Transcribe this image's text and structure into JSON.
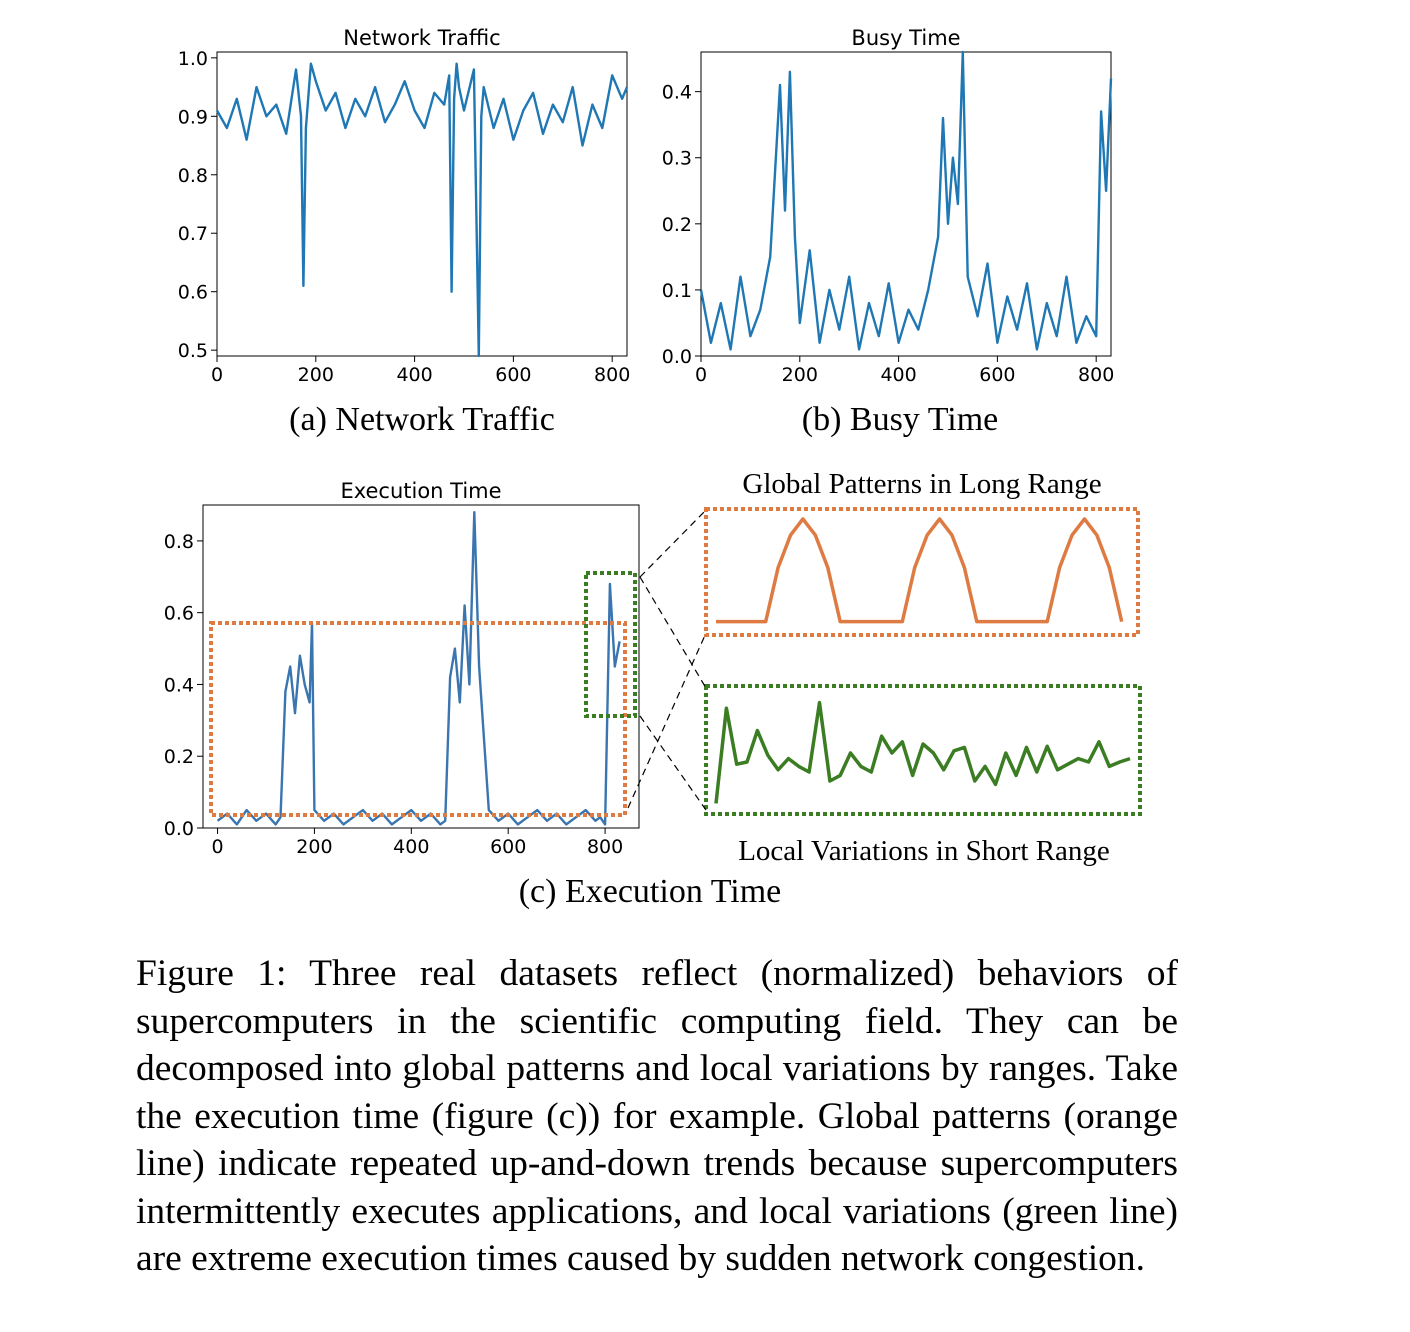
{
  "chart_data": [
    {
      "type": "line",
      "panel": "a",
      "title": "Network Traffic",
      "subcaption": "(a) Network Traffic",
      "color": "#1f77b4",
      "xlim": [
        0,
        830
      ],
      "ylim": [
        0.49,
        1.01
      ],
      "xticks": [
        0,
        200,
        400,
        600,
        800
      ],
      "yticks": [
        0.5,
        0.6,
        0.7,
        0.8,
        0.9,
        1.0
      ],
      "xtick_labels": [
        "0",
        "200",
        "400",
        "600",
        "800"
      ],
      "ytick_labels": [
        "0.5",
        "0.6",
        "0.7",
        "0.8",
        "0.9",
        "1.0"
      ],
      "x": [
        0,
        20,
        40,
        60,
        80,
        100,
        120,
        140,
        160,
        170,
        175,
        180,
        190,
        200,
        220,
        240,
        260,
        280,
        300,
        320,
        340,
        360,
        380,
        400,
        420,
        440,
        460,
        470,
        475,
        480,
        485,
        490,
        500,
        520,
        530,
        535,
        540,
        560,
        580,
        600,
        620,
        640,
        660,
        680,
        700,
        720,
        740,
        760,
        780,
        800,
        820,
        830
      ],
      "values": [
        0.91,
        0.88,
        0.93,
        0.86,
        0.95,
        0.9,
        0.92,
        0.87,
        0.98,
        0.9,
        0.61,
        0.88,
        0.99,
        0.96,
        0.91,
        0.94,
        0.88,
        0.93,
        0.9,
        0.95,
        0.89,
        0.92,
        0.96,
        0.91,
        0.88,
        0.94,
        0.92,
        0.97,
        0.6,
        0.93,
        0.99,
        0.95,
        0.91,
        0.98,
        0.49,
        0.9,
        0.95,
        0.88,
        0.93,
        0.86,
        0.91,
        0.94,
        0.87,
        0.92,
        0.89,
        0.95,
        0.85,
        0.92,
        0.88,
        0.97,
        0.93,
        0.95
      ]
    },
    {
      "type": "line",
      "panel": "b",
      "title": "Busy Time",
      "subcaption": "(b) Busy Time",
      "color": "#1f77b4",
      "xlim": [
        0,
        830
      ],
      "ylim": [
        0,
        0.46
      ],
      "xticks": [
        0,
        200,
        400,
        600,
        800
      ],
      "yticks": [
        0.0,
        0.1,
        0.2,
        0.3,
        0.4
      ],
      "xtick_labels": [
        "0",
        "200",
        "400",
        "600",
        "800"
      ],
      "ytick_labels": [
        "0.0",
        "0.1",
        "0.2",
        "0.3",
        "0.4"
      ],
      "x": [
        0,
        20,
        40,
        60,
        80,
        100,
        120,
        140,
        150,
        160,
        170,
        180,
        190,
        200,
        220,
        240,
        260,
        280,
        300,
        320,
        340,
        360,
        380,
        400,
        420,
        440,
        460,
        480,
        490,
        500,
        510,
        520,
        530,
        540,
        560,
        580,
        600,
        620,
        640,
        660,
        680,
        700,
        720,
        740,
        760,
        780,
        800,
        810,
        820,
        830
      ],
      "values": [
        0.1,
        0.02,
        0.08,
        0.01,
        0.12,
        0.03,
        0.07,
        0.15,
        0.28,
        0.41,
        0.22,
        0.43,
        0.18,
        0.05,
        0.16,
        0.02,
        0.1,
        0.04,
        0.12,
        0.01,
        0.08,
        0.03,
        0.11,
        0.02,
        0.07,
        0.04,
        0.1,
        0.18,
        0.36,
        0.2,
        0.3,
        0.23,
        0.46,
        0.12,
        0.06,
        0.14,
        0.02,
        0.09,
        0.04,
        0.11,
        0.01,
        0.08,
        0.03,
        0.12,
        0.02,
        0.06,
        0.03,
        0.37,
        0.25,
        0.42
      ]
    },
    {
      "type": "line",
      "panel": "c",
      "title": "Execution Time",
      "subcaption": "(c) Execution Time",
      "color": "#3a75b0",
      "xlim": [
        -30,
        870
      ],
      "ylim": [
        0,
        0.9
      ],
      "xticks": [
        0,
        200,
        400,
        600,
        800
      ],
      "yticks": [
        0.0,
        0.2,
        0.4,
        0.6,
        0.8
      ],
      "xtick_labels": [
        "0",
        "200",
        "400",
        "600",
        "800"
      ],
      "ytick_labels": [
        "0.0",
        "0.2",
        "0.4",
        "0.6",
        "0.8"
      ],
      "x": [
        0,
        20,
        40,
        60,
        80,
        100,
        120,
        130,
        140,
        150,
        160,
        170,
        180,
        190,
        195,
        200,
        220,
        240,
        260,
        280,
        300,
        320,
        340,
        360,
        380,
        400,
        420,
        440,
        460,
        470,
        480,
        490,
        500,
        510,
        520,
        530,
        540,
        560,
        580,
        600,
        620,
        640,
        660,
        680,
        700,
        720,
        740,
        760,
        780,
        790,
        800,
        810,
        820,
        830
      ],
      "values": [
        0.02,
        0.04,
        0.01,
        0.05,
        0.02,
        0.04,
        0.01,
        0.03,
        0.38,
        0.45,
        0.32,
        0.48,
        0.4,
        0.35,
        0.57,
        0.05,
        0.02,
        0.04,
        0.01,
        0.03,
        0.05,
        0.02,
        0.04,
        0.01,
        0.03,
        0.05,
        0.02,
        0.04,
        0.01,
        0.02,
        0.42,
        0.5,
        0.35,
        0.62,
        0.4,
        0.88,
        0.45,
        0.05,
        0.02,
        0.04,
        0.01,
        0.03,
        0.05,
        0.02,
        0.04,
        0.01,
        0.03,
        0.05,
        0.02,
        0.03,
        0.01,
        0.68,
        0.45,
        0.52
      ]
    },
    {
      "type": "line",
      "panel": "inset-global",
      "title": "Global Patterns in Long Range",
      "color": "#dd7b43",
      "xlim": [
        0,
        100
      ],
      "ylim": [
        0,
        1
      ],
      "x": [
        0,
        12,
        15,
        18,
        21,
        24,
        27,
        30,
        45,
        48,
        51,
        54,
        57,
        60,
        63,
        80,
        83,
        86,
        89,
        92,
        95,
        98
      ],
      "values": [
        0.05,
        0.05,
        0.55,
        0.85,
        1.0,
        0.85,
        0.55,
        0.05,
        0.05,
        0.55,
        0.85,
        1.0,
        0.85,
        0.55,
        0.05,
        0.05,
        0.55,
        0.85,
        1.0,
        0.85,
        0.55,
        0.05
      ]
    },
    {
      "type": "line",
      "panel": "inset-local",
      "title": "Local Variations in Short Range",
      "color": "#3b7d23",
      "xlim": [
        0,
        40
      ],
      "ylim": [
        0,
        1
      ],
      "x": [
        0,
        1,
        2,
        3,
        4,
        5,
        6,
        7,
        8,
        9,
        10,
        11,
        12,
        13,
        14,
        15,
        16,
        17,
        18,
        19,
        20,
        21,
        22,
        23,
        24,
        25,
        26,
        27,
        28,
        29,
        30,
        31,
        32,
        33,
        34,
        35,
        36,
        37,
        38,
        39,
        40
      ],
      "values": [
        0.05,
        0.9,
        0.4,
        0.42,
        0.7,
        0.48,
        0.35,
        0.45,
        0.38,
        0.33,
        0.95,
        0.25,
        0.3,
        0.5,
        0.38,
        0.33,
        0.65,
        0.5,
        0.6,
        0.3,
        0.58,
        0.5,
        0.35,
        0.52,
        0.55,
        0.25,
        0.38,
        0.22,
        0.5,
        0.3,
        0.55,
        0.33,
        0.56,
        0.35,
        0.4,
        0.45,
        0.42,
        0.6,
        0.38,
        0.42,
        0.45
      ]
    }
  ],
  "figure": {
    "inset_global_label": "Global Patterns in Long Range",
    "inset_local_label": "Local Variations in Short Range",
    "highlight_orange": "#dd7b43",
    "highlight_green": "#3b7d23"
  },
  "caption": "Figure 1: Three real datasets reflect (normalized) behaviors of supercomputers in the scientific computing field. They can be decomposed into global patterns and local variations by ranges. Take the execution time (figure (c)) for example. Global patterns (orange line) indicate repeated up-and-down trends because supercomputers intermittently executes ap­plications, and local variations (green line) are extreme exe­cution times caused by sudden network congestion."
}
